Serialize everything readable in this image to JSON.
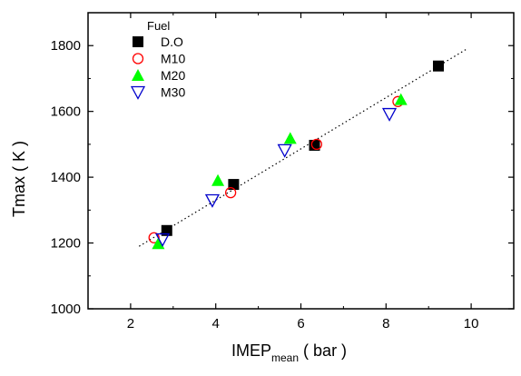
{
  "chart_data": {
    "type": "scatter",
    "xlabel": "IMEP",
    "xlabel_subscript": "mean",
    "xlabel_unit": " ( bar )",
    "ylabel": "Tmax ( K )",
    "xlim": [
      1,
      11
    ],
    "ylim": [
      1000,
      1900
    ],
    "xticks": [
      2,
      4,
      6,
      8,
      10
    ],
    "yticks": [
      1000,
      1200,
      1400,
      1600,
      1800
    ],
    "grid": false,
    "legend": {
      "title": "Fuel",
      "placement": "top-left"
    },
    "series": [
      {
        "name": "D.O",
        "marker": "square-filled",
        "color": "#000000",
        "points": [
          [
            2.85,
            1238
          ],
          [
            4.42,
            1378
          ],
          [
            6.32,
            1497
          ],
          [
            9.23,
            1738
          ]
        ]
      },
      {
        "name": "M10",
        "marker": "circle-open",
        "color": "#ff0000",
        "points": [
          [
            2.55,
            1216
          ],
          [
            4.35,
            1353
          ],
          [
            6.37,
            1500
          ],
          [
            8.28,
            1630
          ]
        ]
      },
      {
        "name": "M20",
        "marker": "triangle-up-filled",
        "color": "#00ff00",
        "points": [
          [
            2.65,
            1198
          ],
          [
            4.05,
            1390
          ],
          [
            5.75,
            1518
          ],
          [
            8.35,
            1636
          ]
        ]
      },
      {
        "name": "M30",
        "marker": "triangle-down-open",
        "color": "#0000cc",
        "points": [
          [
            2.75,
            1211
          ],
          [
            3.92,
            1330
          ],
          [
            5.62,
            1482
          ],
          [
            8.08,
            1592
          ]
        ]
      }
    ],
    "fit_line": {
      "style": "dotted",
      "color": "#000000",
      "points": [
        [
          2.2,
          1190
        ],
        [
          9.9,
          1790
        ]
      ]
    }
  }
}
